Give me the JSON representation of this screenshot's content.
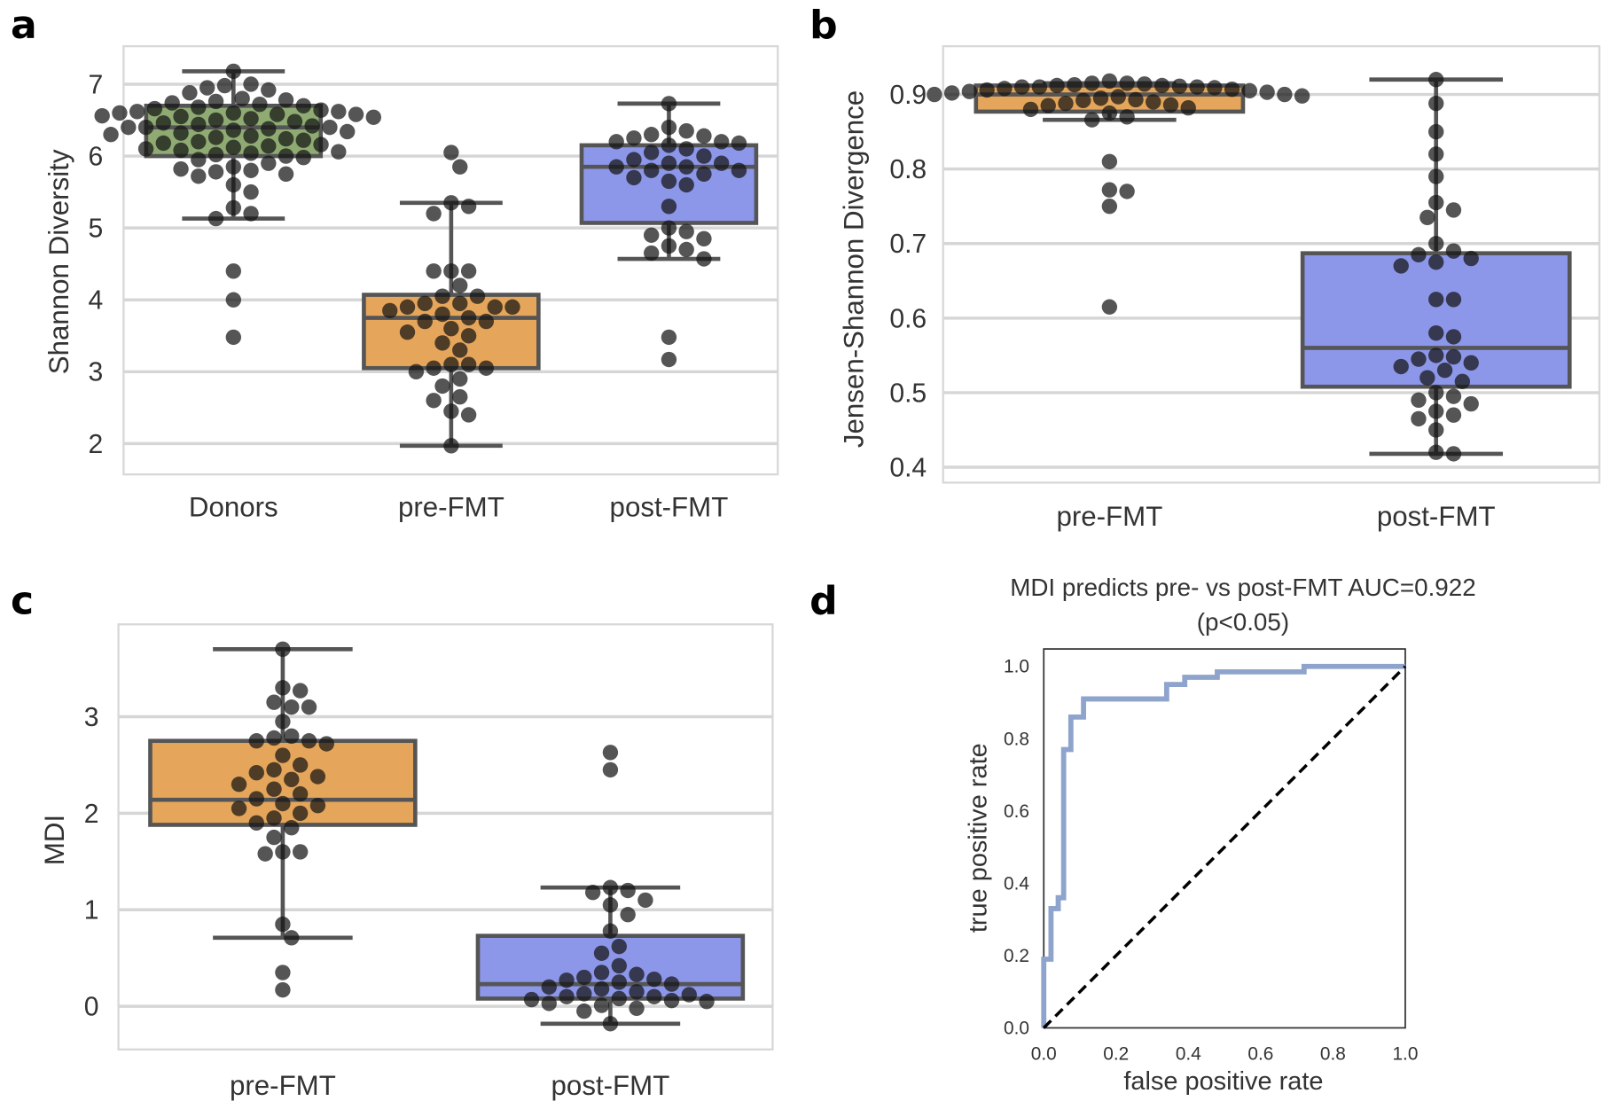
{
  "panel_letters": [
    "a",
    "b",
    "c",
    "d"
  ],
  "chart_data": [
    {
      "type": "box+swarm",
      "ylabel": "Shannon Diversity",
      "xlabel": "",
      "categories": [
        "Donors",
        "pre-FMT",
        "post-FMT"
      ],
      "colors": [
        "#8fab73",
        "#e5a65b",
        "#8d97ea"
      ],
      "ylim": [
        1.6,
        7.55
      ],
      "yticks": [
        2,
        3,
        4,
        5,
        6,
        7
      ],
      "grid": true,
      "boxes": [
        {
          "q1": 6.0,
          "median": 6.4,
          "q3": 6.7,
          "whisker_low": 5.13,
          "whisker_high": 7.18
        },
        {
          "q1": 3.05,
          "median": 3.75,
          "q3": 4.07,
          "whisker_low": 1.97,
          "whisker_high": 5.35
        },
        {
          "q1": 5.07,
          "median": 5.85,
          "q3": 6.15,
          "whisker_low": 4.57,
          "whisker_high": 6.73
        }
      ],
      "points": [
        [
          7.18,
          7.0,
          6.98,
          6.95,
          6.92,
          6.88,
          6.8,
          6.78,
          6.76,
          6.74,
          6.72,
          6.7,
          6.68,
          6.66,
          6.64,
          6.62,
          6.62,
          6.6,
          6.6,
          6.58,
          6.58,
          6.56,
          6.55,
          6.54,
          6.52,
          6.5,
          6.48,
          6.46,
          6.44,
          6.42,
          6.4,
          6.4,
          6.4,
          6.38,
          6.36,
          6.34,
          6.32,
          6.3,
          6.28,
          6.26,
          6.24,
          6.22,
          6.2,
          6.18,
          6.16,
          6.14,
          6.12,
          6.1,
          6.08,
          6.06,
          6.04,
          6.02,
          6.0,
          5.98,
          5.95,
          5.9,
          5.85,
          5.82,
          5.8,
          5.78,
          5.75,
          5.72,
          5.6,
          5.5,
          5.28,
          5.2,
          5.13,
          4.4,
          4.0,
          3.48
        ],
        [
          6.05,
          5.85,
          5.35,
          5.3,
          5.2,
          4.4,
          4.4,
          4.4,
          4.2,
          4.05,
          4.05,
          3.95,
          3.95,
          3.9,
          3.9,
          3.9,
          3.85,
          3.8,
          3.75,
          3.7,
          3.7,
          3.6,
          3.55,
          3.5,
          3.4,
          3.3,
          3.1,
          3.1,
          3.05,
          3.05,
          3.0,
          2.9,
          2.8,
          2.65,
          2.6,
          2.45,
          2.4,
          1.97
        ],
        [
          6.73,
          6.4,
          6.35,
          6.3,
          6.28,
          6.25,
          6.2,
          6.2,
          6.18,
          6.15,
          6.1,
          6.05,
          6.0,
          5.95,
          5.9,
          5.9,
          5.85,
          5.85,
          5.8,
          5.8,
          5.75,
          5.7,
          5.65,
          5.6,
          5.3,
          5.0,
          4.95,
          4.9,
          4.85,
          4.75,
          4.7,
          4.65,
          4.57,
          3.48,
          3.17
        ]
      ]
    },
    {
      "type": "box+swarm",
      "ylabel": "Jensen-Shannon Divergence",
      "xlabel": "",
      "categories": [
        "pre-FMT",
        "post-FMT"
      ],
      "colors": [
        "#e5a65b",
        "#8d97ea"
      ],
      "ylim": [
        0.38,
        0.965
      ],
      "yticks": [
        0.4,
        0.5,
        0.6,
        0.7,
        0.8,
        0.9
      ],
      "grid": true,
      "boxes": [
        {
          "q1": 0.877,
          "median": 0.9,
          "q3": 0.912,
          "whisker_low": 0.866,
          "whisker_high": 0.915
        },
        {
          "q1": 0.508,
          "median": 0.56,
          "q3": 0.687,
          "whisker_low": 0.418,
          "whisker_high": 0.92
        }
      ],
      "points": [
        [
          0.918,
          0.915,
          0.915,
          0.914,
          0.913,
          0.912,
          0.912,
          0.911,
          0.91,
          0.91,
          0.91,
          0.909,
          0.908,
          0.907,
          0.906,
          0.905,
          0.904,
          0.903,
          0.902,
          0.9,
          0.9,
          0.898,
          0.897,
          0.895,
          0.893,
          0.892,
          0.89,
          0.888,
          0.886,
          0.885,
          0.882,
          0.88,
          0.875,
          0.87,
          0.866,
          0.81,
          0.772,
          0.77,
          0.75,
          0.615
        ],
        [
          0.92,
          0.888,
          0.85,
          0.82,
          0.79,
          0.755,
          0.745,
          0.735,
          0.7,
          0.69,
          0.685,
          0.68,
          0.675,
          0.67,
          0.625,
          0.625,
          0.58,
          0.575,
          0.55,
          0.548,
          0.545,
          0.54,
          0.535,
          0.53,
          0.52,
          0.515,
          0.5,
          0.495,
          0.49,
          0.485,
          0.475,
          0.47,
          0.465,
          0.45,
          0.42,
          0.418
        ]
      ]
    },
    {
      "type": "box+swarm",
      "ylabel": "MDI",
      "xlabel": "",
      "categories": [
        "pre-FMT",
        "post-FMT"
      ],
      "colors": [
        "#e5a65b",
        "#8d97ea"
      ],
      "ylim": [
        -0.45,
        3.95
      ],
      "yticks": [
        0,
        1,
        2,
        3
      ],
      "grid": true,
      "boxes": [
        {
          "q1": 1.88,
          "median": 2.14,
          "q3": 2.75,
          "whisker_low": 0.71,
          "whisker_high": 3.7
        },
        {
          "q1": 0.08,
          "median": 0.23,
          "q3": 0.73,
          "whisker_low": -0.18,
          "whisker_high": 1.23
        }
      ],
      "points": [
        [
          3.7,
          3.3,
          3.27,
          3.15,
          3.1,
          3.1,
          2.95,
          2.8,
          2.78,
          2.75,
          2.75,
          2.72,
          2.6,
          2.5,
          2.45,
          2.42,
          2.38,
          2.35,
          2.3,
          2.25,
          2.2,
          2.15,
          2.1,
          2.08,
          2.05,
          2.0,
          1.95,
          1.9,
          1.85,
          1.75,
          1.6,
          1.6,
          1.58,
          0.85,
          0.71,
          0.35,
          0.17
        ],
        [
          2.63,
          2.45,
          1.23,
          1.2,
          1.18,
          1.1,
          1.05,
          0.95,
          0.78,
          0.62,
          0.55,
          0.42,
          0.35,
          0.33,
          0.3,
          0.28,
          0.27,
          0.25,
          0.23,
          0.2,
          0.18,
          0.15,
          0.13,
          0.12,
          0.1,
          0.1,
          0.08,
          0.07,
          0.06,
          0.05,
          0.03,
          0.01,
          -0.02,
          -0.05,
          -0.18
        ]
      ]
    },
    {
      "type": "line",
      "title": "MDI predicts pre- vs post-FMT AUC=0.922",
      "subtitle": "(p<0.05)",
      "xlabel": "false positive rate",
      "ylabel": "true positive rate",
      "xlim": [
        0,
        1
      ],
      "ylim": [
        0,
        1.05
      ],
      "xticks": [
        "0.0",
        "0.2",
        "0.4",
        "0.6",
        "0.8",
        "1.0"
      ],
      "yticks": [
        "0.0",
        "0.2",
        "0.4",
        "0.6",
        "0.8",
        "1.0"
      ],
      "grid": false,
      "series": [
        {
          "color": "#8ea4cc",
          "style": "solid",
          "x": [
            0,
            0,
            0.02,
            0.02,
            0.04,
            0.04,
            0.055,
            0.055,
            0.075,
            0.075,
            0.11,
            0.11,
            0.34,
            0.34,
            0.39,
            0.39,
            0.48,
            0.48,
            0.72,
            0.72,
            1.0
          ],
          "y": [
            0,
            0.19,
            0.19,
            0.33,
            0.33,
            0.36,
            0.36,
            0.77,
            0.77,
            0.86,
            0.86,
            0.91,
            0.91,
            0.95,
            0.95,
            0.97,
            0.97,
            0.985,
            0.985,
            1.0,
            1.0
          ]
        },
        {
          "color": "#000000",
          "style": "dashed",
          "x": [
            0,
            1
          ],
          "y": [
            0,
            1
          ]
        }
      ]
    }
  ]
}
